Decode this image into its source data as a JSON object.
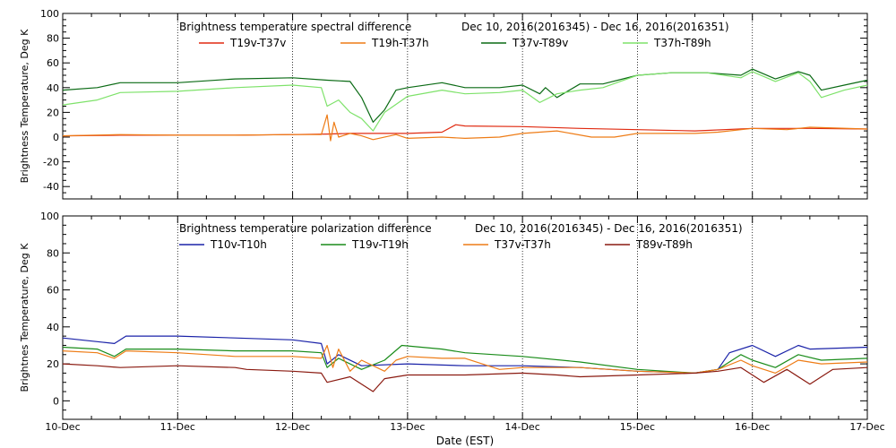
{
  "xlabel": "Date (EST)",
  "x_ticks": [
    "10-Dec",
    "11-Dec",
    "12-Dec",
    "13-Dec",
    "14-Dec",
    "15-Dec",
    "16-Dec",
    "17-Dec"
  ],
  "chart_data": [
    {
      "type": "line",
      "title": "Brightness temperature spectral difference",
      "subtitle": "Dec 10, 2016(2016345) - Dec 16, 2016(2016351)",
      "ylabel": "Brightness Temperature, Deg K",
      "xlim": [
        0,
        7
      ],
      "ylim": [
        -50,
        100
      ],
      "yticks": [
        -40,
        -20,
        0,
        20,
        40,
        60,
        80,
        100
      ],
      "grid": "vertical dotted at day boundaries",
      "legend_position": "top",
      "series": [
        {
          "name": "T19v-T37v",
          "color": "#e02a10",
          "x": [
            0,
            0.5,
            1,
            1.5,
            2,
            2.3,
            2.5,
            2.7,
            3,
            3.3,
            3.42,
            3.5,
            4,
            4.5,
            5,
            5.5,
            6,
            6.5,
            7
          ],
          "y": [
            1,
            1.5,
            1.5,
            1.5,
            2,
            2.5,
            3,
            3,
            3,
            4,
            10,
            9,
            8.5,
            7,
            6,
            5,
            7,
            7,
            6.5
          ]
        },
        {
          "name": "T19h-T37h",
          "color": "#ee7c16",
          "x": [
            0,
            0.5,
            1,
            1.5,
            2,
            2.25,
            2.3,
            2.33,
            2.36,
            2.4,
            2.5,
            2.6,
            2.7,
            2.9,
            3,
            3.3,
            3.5,
            3.8,
            4,
            4.3,
            4.6,
            4.8,
            5,
            5.5,
            5.7,
            6,
            6.3,
            6.5,
            7
          ],
          "y": [
            1,
            2,
            1.5,
            1.5,
            2,
            2,
            18,
            -3,
            12,
            0,
            3,
            1,
            -2,
            2,
            -1,
            0,
            -1,
            0,
            3,
            5,
            0,
            0,
            3,
            3,
            4,
            7,
            6,
            8,
            6.5
          ]
        },
        {
          "name": "T37v-T89v",
          "color": "#0a6a14",
          "x": [
            0,
            0.3,
            0.5,
            1,
            1.5,
            2,
            2.3,
            2.5,
            2.6,
            2.7,
            2.8,
            2.9,
            3,
            3.3,
            3.5,
            3.8,
            4,
            4.15,
            4.2,
            4.3,
            4.5,
            4.7,
            5,
            5.3,
            5.6,
            5.9,
            6,
            6.2,
            6.4,
            6.5,
            6.6,
            6.8,
            7
          ],
          "y": [
            38,
            40,
            44,
            44,
            47,
            48,
            46,
            45,
            32,
            12,
            22,
            38,
            40,
            44,
            40,
            40,
            42,
            35,
            40,
            32,
            43,
            43,
            50,
            52,
            52,
            50,
            55,
            47,
            53,
            50,
            38,
            42,
            46
          ]
        },
        {
          "name": "T37h-T89h",
          "color": "#7ee26a",
          "x": [
            0,
            0.3,
            0.5,
            1,
            1.5,
            2,
            2.25,
            2.3,
            2.4,
            2.5,
            2.6,
            2.7,
            2.8,
            3,
            3.3,
            3.5,
            3.8,
            4,
            4.15,
            4.3,
            4.5,
            4.7,
            5,
            5.3,
            5.6,
            5.9,
            6,
            6.2,
            6.4,
            6.5,
            6.6,
            6.8,
            7
          ],
          "y": [
            26,
            30,
            36,
            37,
            40,
            42,
            40,
            25,
            30,
            20,
            15,
            5,
            20,
            33,
            38,
            35,
            36,
            38,
            28,
            35,
            38,
            40,
            50,
            52,
            52,
            48,
            53,
            45,
            52,
            45,
            32,
            38,
            42
          ]
        }
      ]
    },
    {
      "type": "line",
      "title": "Brightness temperature polarization difference",
      "subtitle": "Dec 10, 2016(2016345) - Dec 16, 2016(2016351)",
      "ylabel": "Brightnes Temperature, Deg K",
      "xlim": [
        0,
        7
      ],
      "ylim": [
        -10,
        100
      ],
      "yticks": [
        0,
        20,
        40,
        60,
        80,
        100
      ],
      "grid": "vertical dotted at day boundaries",
      "legend_position": "top",
      "series": [
        {
          "name": "T10v-T10h",
          "color": "#1a22a8",
          "x": [
            0,
            0.3,
            0.45,
            0.55,
            1,
            1.5,
            2,
            2.25,
            2.3,
            2.4,
            2.6,
            3,
            3.5,
            4,
            4.5,
            5,
            5.5,
            5.7,
            5.8,
            6,
            6.2,
            6.4,
            6.5,
            7
          ],
          "y": [
            34,
            32,
            31,
            35,
            35,
            34,
            33,
            31,
            20,
            25,
            19,
            20,
            19,
            19,
            18,
            16,
            15,
            17,
            26,
            30,
            24,
            30,
            28,
            29
          ]
        },
        {
          "name": "T19v-T19h",
          "color": "#1a8c1a",
          "x": [
            0,
            0.3,
            0.45,
            0.55,
            1,
            1.5,
            2,
            2.25,
            2.3,
            2.4,
            2.6,
            2.8,
            2.95,
            3.3,
            3.5,
            4,
            4.5,
            5,
            5.5,
            5.7,
            5.9,
            6,
            6.2,
            6.4,
            6.6,
            7
          ],
          "y": [
            29,
            28,
            24,
            28,
            28,
            27,
            27,
            26,
            18,
            23,
            17,
            22,
            30,
            28,
            26,
            24,
            21,
            17,
            15,
            17,
            25,
            22,
            18,
            25,
            22,
            23
          ]
        },
        {
          "name": "T37v-T37h",
          "color": "#ee7c16",
          "x": [
            0,
            0.3,
            0.45,
            0.55,
            1,
            1.5,
            2,
            2.25,
            2.3,
            2.35,
            2.4,
            2.5,
            2.6,
            2.8,
            2.9,
            3,
            3.3,
            3.5,
            3.8,
            4,
            4.5,
            5,
            5.5,
            5.7,
            5.9,
            6,
            6.2,
            6.4,
            6.6,
            7
          ],
          "y": [
            27,
            26,
            23,
            27,
            26,
            24,
            24,
            23,
            30,
            18,
            28,
            16,
            22,
            16,
            22,
            24,
            23,
            23,
            17,
            18,
            18,
            16,
            15,
            17,
            22,
            19,
            15,
            22,
            20,
            21
          ]
        },
        {
          "name": "T89v-T89h",
          "color": "#8a1a10",
          "x": [
            0,
            0.3,
            0.5,
            1,
            1.5,
            1.6,
            2,
            2.25,
            2.3,
            2.5,
            2.7,
            2.8,
            3,
            3.5,
            4,
            4.3,
            4.5,
            5,
            5.5,
            5.7,
            5.9,
            6,
            6.1,
            6.3,
            6.5,
            6.7,
            7
          ],
          "y": [
            20,
            19,
            18,
            19,
            18,
            17,
            16,
            15,
            10,
            13,
            5,
            12,
            14,
            14,
            15,
            14,
            13,
            14,
            15,
            16,
            18,
            14,
            10,
            17,
            9,
            17,
            18
          ]
        }
      ]
    }
  ]
}
